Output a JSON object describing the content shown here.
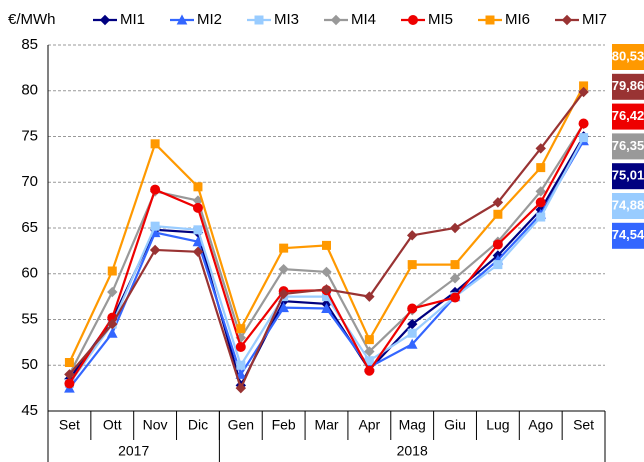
{
  "chart_data": {
    "type": "line",
    "y_label": "€/MWh",
    "categories": [
      "Set",
      "Ott",
      "Nov",
      "Dic",
      "Gen",
      "Feb",
      "Mar",
      "Apr",
      "Mag",
      "Giu",
      "Lug",
      "Ago",
      "Set"
    ],
    "year_groups": [
      {
        "label": "2017",
        "count": 4
      },
      {
        "label": "2018",
        "count": 9
      }
    ],
    "ylim": [
      45,
      85
    ],
    "yticks": [
      45,
      50,
      55,
      60,
      65,
      70,
      75,
      80,
      85
    ],
    "grid": true,
    "series": [
      {
        "name": "MI1",
        "color": "#000080",
        "marker": "diamond",
        "values": [
          48.5,
          55,
          64.8,
          64.5,
          47.8,
          57,
          56.7,
          49.5,
          54.5,
          58,
          62,
          67,
          75.01
        ],
        "value_labels": [
          null,
          null,
          null,
          null,
          null,
          null,
          null,
          null,
          null,
          null,
          null,
          null,
          "75,01"
        ]
      },
      {
        "name": "MI2",
        "color": "#3366ff",
        "marker": "triangle",
        "values": [
          47.5,
          53.5,
          64.5,
          63.5,
          49,
          56.3,
          56.2,
          49.8,
          52.3,
          57.5,
          61.5,
          66.5,
          74.54
        ],
        "value_labels": [
          null,
          null,
          null,
          null,
          null,
          null,
          null,
          null,
          null,
          null,
          null,
          null,
          "74,54"
        ]
      },
      {
        "name": "MI3",
        "color": "#99ccff",
        "marker": "square",
        "values": [
          48,
          54.5,
          65.2,
          64.8,
          50,
          57.5,
          57.5,
          50.5,
          53.5,
          57.5,
          61,
          66.2,
          74.88
        ],
        "value_labels": [
          null,
          null,
          null,
          null,
          null,
          null,
          null,
          null,
          null,
          null,
          null,
          null,
          "74,88"
        ]
      },
      {
        "name": "MI4",
        "color": "#999999",
        "marker": "diamond",
        "values": [
          49,
          58,
          69,
          68,
          53,
          60.5,
          60.2,
          51.5,
          56,
          59.5,
          63.5,
          69,
          76.35
        ],
        "value_labels": [
          null,
          null,
          null,
          null,
          null,
          null,
          null,
          null,
          null,
          null,
          null,
          null,
          "76,35"
        ]
      },
      {
        "name": "MI5",
        "color": "#ee0000",
        "marker": "circle",
        "values": [
          48,
          55.2,
          69.2,
          67.2,
          52,
          58.1,
          58.2,
          49.4,
          56.2,
          57.4,
          63.2,
          67.8,
          76.42
        ],
        "value_labels": [
          null,
          null,
          null,
          null,
          null,
          null,
          null,
          null,
          null,
          null,
          null,
          null,
          "76,42"
        ]
      },
      {
        "name": "MI6",
        "color": "#ff9900",
        "marker": "square",
        "values": [
          50.3,
          60.3,
          74.2,
          69.5,
          54,
          62.8,
          63.1,
          52.8,
          61,
          61,
          66.5,
          71.6,
          80.53
        ],
        "value_labels": [
          null,
          null,
          null,
          null,
          null,
          null,
          null,
          null,
          null,
          null,
          null,
          null,
          "80,53"
        ]
      },
      {
        "name": "MI7",
        "color": "#993333",
        "marker": "diamond",
        "values": [
          49,
          54.5,
          62.6,
          62.4,
          47.5,
          57.8,
          58.3,
          57.5,
          64.2,
          65,
          67.8,
          73.7,
          79.86
        ],
        "value_labels": [
          null,
          null,
          null,
          null,
          null,
          null,
          null,
          null,
          null,
          null,
          null,
          null,
          "79,86"
        ]
      }
    ]
  }
}
